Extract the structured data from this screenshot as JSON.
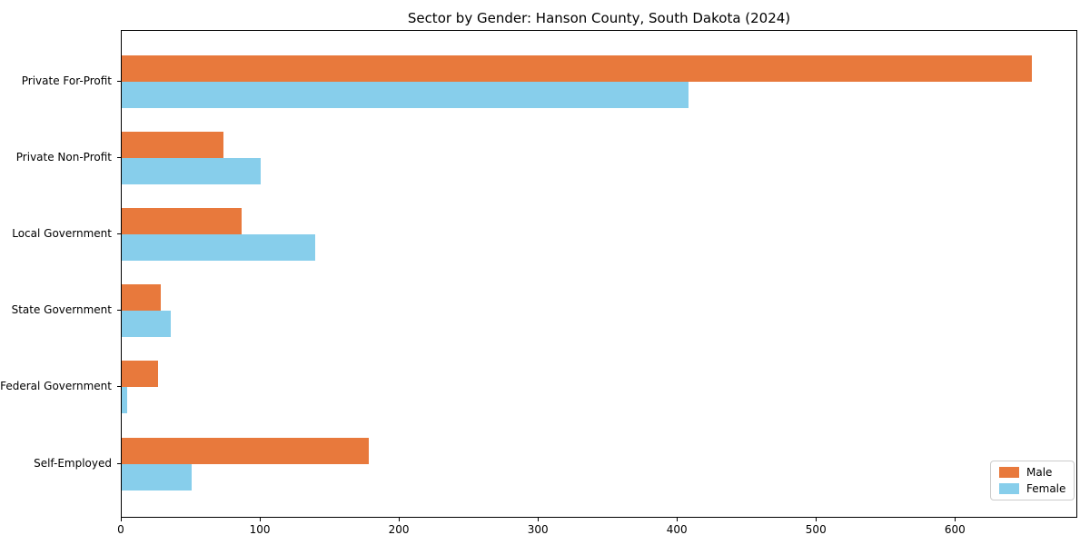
{
  "title": "Sector by Gender: Hanson County, South Dakota (2024)",
  "chart_data": {
    "type": "bar",
    "orientation": "horizontal",
    "title": "Sector by Gender: Hanson County, South Dakota (2024)",
    "categories": [
      "Private For-Profit",
      "Private Non-Profit",
      "Local Government",
      "State Government",
      "Federal Government",
      "Self-Employed"
    ],
    "series": [
      {
        "name": "Male",
        "color": "#e8793c",
        "values": [
          655,
          73,
          86,
          28,
          26,
          178
        ]
      },
      {
        "name": "Female",
        "color": "#87ceeb",
        "values": [
          408,
          100,
          139,
          35,
          4,
          50
        ]
      }
    ],
    "xlabel": "",
    "ylabel": "",
    "xlim": [
      0,
      688
    ],
    "xticks": [
      0,
      100,
      200,
      300,
      400,
      500,
      600
    ],
    "grid": false,
    "background": "#ffffff",
    "spine_color": "#000000",
    "legend": {
      "position": "lower right",
      "entries": [
        "Male",
        "Female"
      ]
    }
  }
}
